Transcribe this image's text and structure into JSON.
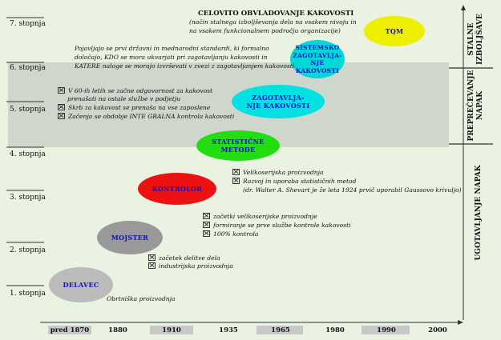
{
  "levels": [
    "1. stopnja",
    "2. stopnja",
    "3. stopnja",
    "4. stopnja",
    "5. stopnja",
    "6. stopnja",
    "7. stopnja"
  ],
  "years": [
    "pred 1870",
    "1880",
    "1910",
    "1935",
    "1965",
    "1980",
    "1990",
    "2000"
  ],
  "stages": {
    "delavec": "DELAVEC",
    "mojster": "MOJSTER",
    "kontrolor": "KONTROLOR",
    "statisticne": [
      "STATISTIČNE",
      "METODE"
    ],
    "zagotavljanje": [
      "ZAGOTAVLJA-",
      "NJE KAKOVOSTI"
    ],
    "sistemsko": [
      "SISTEMSKO",
      "ZAGOTAVLJA-",
      "NJE",
      "KAKOVOSTI"
    ],
    "tqm": "TQM"
  },
  "notes": {
    "l1": "Obrtniška proizvodnja",
    "l2": [
      "začetek delitve dela",
      "industrijska proizvodnja"
    ],
    "l3": [
      "začetki velikoserijske proizvodnje",
      "formiranje se prve službe kontrole kakovosti",
      "100% kontrola"
    ],
    "l4": [
      "Velikoserijska proizvodnja",
      "Razvoj in uporaba statističnih metod",
      "(dr. Walter A. Shevart je že leta 1924 prvič uporabil Gaussovo krivuljo)"
    ],
    "l5": [
      "V 60-ih letih se začne odgovornost za kakovost",
      "prenašati na ostale službe v podjetju",
      "Skrb za kakovost se prenaša na vse zaposlene",
      "Začenja se obdobje INTE GRALNA kontrola kakovosti"
    ],
    "l6": [
      "Pojavljajo se prvi državni in mednarodni standardi, ki formalno",
      "določajo, KDO se mora ukvarjati pri zagotavljanju kakovosti in",
      "KATERE naloge se morajo izvrševati v zvezi z zagotavljanjem kakovosti"
    ],
    "l7_title": "CELOVITO OBVLADOVANJE KAKOVOSTI",
    "l7": [
      "(način stalnega izboljševanja dela na vsakem nivoju in",
      "na vsakem funkcionalnem področju organizacije)"
    ]
  },
  "side_labels": {
    "top": [
      "STALNE",
      "IZBOLJŠAVE"
    ],
    "middle": [
      "PREPREČEVANJE",
      "NAPAK"
    ],
    "bottom": "UGOTAVLJANJE NAPAK"
  },
  "colors": {
    "background": "#eaf3e2",
    "band": "#cfd6cc",
    "delavec": "#bbbbbb",
    "mojster": "#999999",
    "kontrolor": "#ee1111",
    "statisticne": "#22dd11",
    "zagotavljanje": "#00e2e2",
    "sistemsko": "#00d8d8",
    "tqm": "#eeee00"
  }
}
